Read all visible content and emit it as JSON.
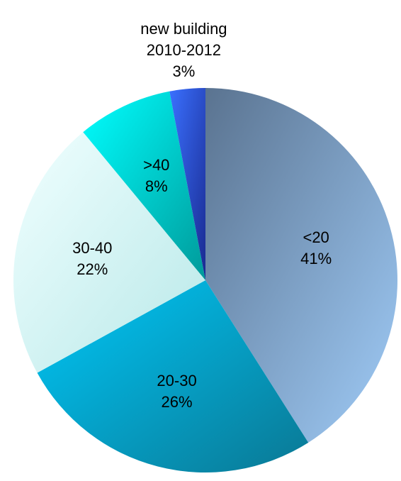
{
  "chart_data": {
    "type": "pie",
    "categories": [
      "<20",
      "20-30",
      "30-40",
      ">40",
      "new building\n2010-2012"
    ],
    "values": [
      41,
      26,
      22,
      8,
      3
    ],
    "value_labels": [
      "41%",
      "26%",
      "22%",
      "8%",
      "3%"
    ],
    "colors": [
      [
        "#5a7390",
        "#a0ccf8"
      ],
      [
        "#00c8f8",
        "#0a7894"
      ],
      [
        "#f0ffff",
        "#b8e8e8"
      ],
      [
        "#00ffff",
        "#009a9a"
      ],
      [
        "#3a70ff",
        "#1a2a90"
      ]
    ]
  }
}
